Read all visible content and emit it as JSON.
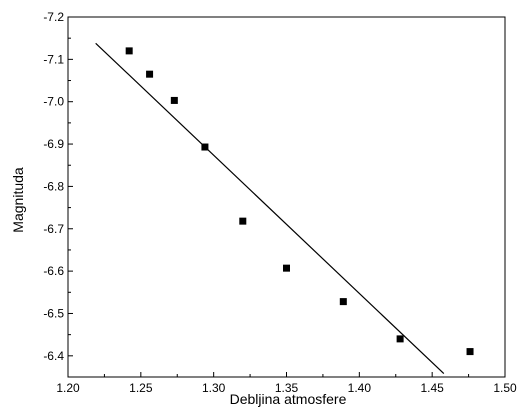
{
  "chart_data": {
    "type": "scatter",
    "xlabel": "Debljina atmosfere",
    "ylabel": "Magnituda",
    "xlim": [
      1.2,
      1.5
    ],
    "ylim": [
      -6.35,
      -7.2
    ],
    "y_reversed": true,
    "grid": false,
    "x_ticks": [
      "1.20",
      "1.25",
      "1.30",
      "1.35",
      "1.40",
      "1.45",
      "1.50"
    ],
    "y_ticks": [
      "-7.2",
      "-7.1",
      "-7.0",
      "-6.9",
      "-6.8",
      "-6.7",
      "-6.6",
      "-6.5",
      "-6.4"
    ],
    "series": [
      {
        "marker": "square",
        "color": "#000000",
        "x": [
          1.242,
          1.256,
          1.273,
          1.294,
          1.32,
          1.35,
          1.389,
          1.428,
          1.476
        ],
        "y": [
          -7.12,
          -7.065,
          -7.003,
          -6.893,
          -6.718,
          -6.607,
          -6.528,
          -6.44,
          -6.41
        ]
      }
    ],
    "fit_line": {
      "color": "#000000",
      "x": [
        1.219,
        1.458
      ],
      "y": [
        -7.138,
        -6.358
      ]
    }
  }
}
